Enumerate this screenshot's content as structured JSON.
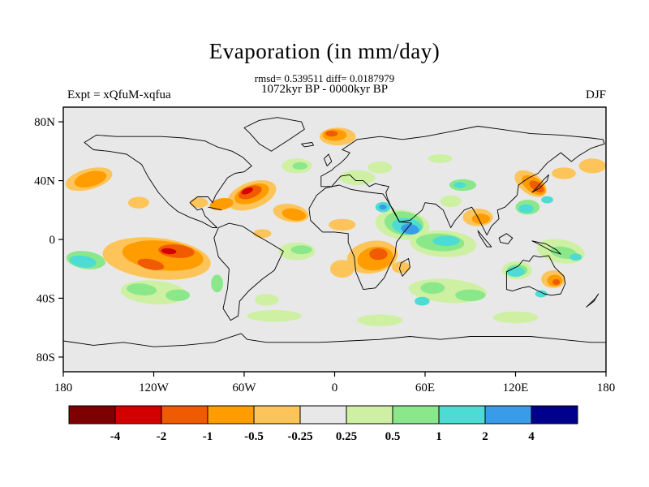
{
  "figure": {
    "title": "Evaporation (in mm/day)",
    "stats_line": "rmsd= 0.539511 diff= 0.0187979",
    "comparison_line": "1072kyr BP - 0000kyr BP",
    "experiment_label": "Expt = xQfuM-xqfua",
    "season_label": "DJF"
  },
  "chart_data": {
    "type": "heatmap",
    "title": "Evaporation (in mm/day)",
    "subtitle": "1072kyr BP - 0000kyr BP",
    "stats": {
      "rmsd": 0.539511,
      "diff": 0.0187979
    },
    "experiment": "xQfuM-xqfua",
    "season": "DJF",
    "units": "mm/day",
    "projection": "equirectangular",
    "lon_range": [
      -180,
      180
    ],
    "lat_range": [
      -90,
      90
    ],
    "x_ticks": [
      {
        "lon": -180,
        "label": "180"
      },
      {
        "lon": -120,
        "label": "120W"
      },
      {
        "lon": -60,
        "label": "60W"
      },
      {
        "lon": 0,
        "label": "0"
      },
      {
        "lon": 60,
        "label": "60E"
      },
      {
        "lon": 120,
        "label": "120E"
      },
      {
        "lon": 180,
        "label": "180"
      }
    ],
    "y_ticks": [
      {
        "lat": 80,
        "label": "80N"
      },
      {
        "lat": 40,
        "label": "40N"
      },
      {
        "lat": 0,
        "label": "0"
      },
      {
        "lat": -40,
        "label": "40S"
      },
      {
        "lat": -80,
        "label": "80S"
      }
    ],
    "colorbar": {
      "boundary_labels": [
        "-4",
        "-2",
        "-1",
        "-0.5",
        "-0.25",
        "0.25",
        "0.5",
        "1",
        "2",
        "4"
      ],
      "segment_colors": [
        "#7f0000",
        "#d40000",
        "#f05a00",
        "#ff9c00",
        "#fdc559",
        "#e8e8e8",
        "#cdf0a2",
        "#8ae88a",
        "#4ddcd4",
        "#3a9ce8",
        "#00008c"
      ]
    },
    "background_level": "-0.25..0.25",
    "level_colors": {
      "lt-4": "#7f0000",
      "-4..-2": "#d40000",
      "-2..-1": "#f05a00",
      "-1..-0.5": "#ff9c00",
      "-0.5..-0.25": "#fdc559",
      "-0.25..0.25": "#e8e8e8",
      "0.25..0.5": "#cdf0a2",
      "0.5..1": "#8ae88a",
      "1..2": "#4ddcd4",
      "2..4": "#3a9ce8",
      "gt4": "#00008c"
    },
    "anomaly_regions": [
      {
        "lon": -163,
        "lat": 41,
        "rlon": 16,
        "rlat": 7,
        "rot": -15,
        "level": "-0.5..-0.25"
      },
      {
        "lon": -130,
        "lat": 25,
        "rlon": 7,
        "rlat": 4,
        "rot": 0,
        "level": "-0.5..-0.25"
      },
      {
        "lon": -118,
        "lat": -13,
        "rlon": 36,
        "rlat": 14,
        "rot": 6,
        "level": "-0.5..-0.25"
      },
      {
        "lon": -55,
        "lat": 30,
        "rlon": 17,
        "rlat": 9,
        "rot": -20,
        "level": "-0.5..-0.25"
      },
      {
        "lon": -90,
        "lat": 25,
        "rlon": 6,
        "rlat": 3.5,
        "rot": 0,
        "level": "-0.5..-0.25"
      },
      {
        "lon": -29,
        "lat": 18,
        "rlon": 12,
        "rlat": 6,
        "rot": 10,
        "level": "-0.5..-0.25"
      },
      {
        "lon": 2,
        "lat": 70,
        "rlon": 12,
        "rlat": 6,
        "rot": 0,
        "level": "-0.5..-0.25"
      },
      {
        "lon": 25,
        "lat": -12,
        "rlon": 17,
        "rlat": 11,
        "rot": -10,
        "level": "-0.5..-0.25"
      },
      {
        "lon": 5,
        "lat": 10,
        "rlon": 9,
        "rlat": 4,
        "rot": 0,
        "level": "-0.5..-0.25"
      },
      {
        "lon": 95,
        "lat": 15,
        "rlon": 10,
        "rlat": 6,
        "rot": 0,
        "level": "-0.5..-0.25"
      },
      {
        "lon": 130,
        "lat": 38,
        "rlon": 12,
        "rlat": 7,
        "rot": 35,
        "level": "-0.5..-0.25"
      },
      {
        "lon": 152,
        "lat": 45,
        "rlon": 8,
        "rlat": 4,
        "rot": 0,
        "level": "-0.5..-0.25"
      },
      {
        "lon": 171,
        "lat": 50,
        "rlon": 9,
        "rlat": 5,
        "rot": 0,
        "level": "-0.5..-0.25"
      },
      {
        "lon": 145,
        "lat": -27,
        "rlon": 8,
        "rlat": 6,
        "rot": 0,
        "level": "-0.5..-0.25"
      },
      {
        "lon": -48,
        "lat": 4,
        "rlon": 6,
        "rlat": 3,
        "rot": 0,
        "level": "-0.5..-0.25"
      },
      {
        "lon": 5,
        "lat": -20,
        "rlon": 8,
        "rlat": 6,
        "rot": 0,
        "level": "-0.5..-0.25"
      },
      {
        "lon": 44,
        "lat": -19,
        "rlon": 6,
        "rlat": 4,
        "rot": 0,
        "level": "-0.5..-0.25"
      },
      {
        "lon": -120,
        "lat": -36,
        "rlon": 22,
        "rlat": 8,
        "rot": 4,
        "level": "0.25..0.5"
      },
      {
        "lon": -25,
        "lat": -8,
        "rlon": 12,
        "rlat": 6,
        "rot": 0,
        "level": "0.25..0.5"
      },
      {
        "lon": -25,
        "lat": 50,
        "rlon": 10,
        "rlat": 5,
        "rot": 0,
        "level": "0.25..0.5"
      },
      {
        "lon": 15,
        "lat": 42,
        "rlon": 12,
        "rlat": 5,
        "rot": 0,
        "level": "0.25..0.5"
      },
      {
        "lon": 30,
        "lat": 49,
        "rlon": 8,
        "rlat": 4,
        "rot": 0,
        "level": "0.25..0.5"
      },
      {
        "lon": 75,
        "lat": -35,
        "rlon": 26,
        "rlat": 8,
        "rot": 4,
        "level": "0.25..0.5"
      },
      {
        "lon": 77,
        "lat": 26,
        "rlon": 7,
        "rlat": 4,
        "rot": 0,
        "level": "0.25..0.5"
      },
      {
        "lon": 150,
        "lat": -8,
        "rlon": 16,
        "rlat": 8,
        "rot": 10,
        "level": "0.25..0.5"
      },
      {
        "lon": -40,
        "lat": -52,
        "rlon": 18,
        "rlat": 4,
        "rot": 0,
        "level": "0.25..0.5"
      },
      {
        "lon": 30,
        "lat": -55,
        "rlon": 15,
        "rlat": 4,
        "rot": 0,
        "level": "0.25..0.5"
      },
      {
        "lon": 120,
        "lat": -53,
        "rlon": 15,
        "rlat": 4,
        "rot": 0,
        "level": "0.25..0.5"
      },
      {
        "lon": -45,
        "lat": -41,
        "rlon": 8,
        "rlat": 4,
        "rot": 0,
        "level": "0.25..0.5"
      },
      {
        "lon": 70,
        "lat": 55,
        "rlon": 8,
        "rlat": 3,
        "rot": 0,
        "level": "0.25..0.5"
      },
      {
        "lon": 45,
        "lat": 10,
        "rlon": 18,
        "rlat": 10,
        "rot": 8,
        "level": "0.25..0.5"
      },
      {
        "lon": 72,
        "lat": -3,
        "rlon": 22,
        "rlat": 9,
        "rot": 3,
        "level": "0.25..0.5"
      },
      {
        "lon": 121,
        "lat": -21,
        "rlon": 10,
        "rlat": 6,
        "rot": 0,
        "level": "0.25..0.5"
      },
      {
        "lon": -162,
        "lat": 41,
        "rlon": 11,
        "rlat": 5,
        "rot": -15,
        "level": "-1..-0.5"
      },
      {
        "lon": -114,
        "lat": -11,
        "rlon": 27,
        "rlat": 10,
        "rot": 6,
        "level": "-1..-0.5"
      },
      {
        "lon": -55,
        "lat": 31,
        "rlon": 12,
        "rlat": 6,
        "rot": -20,
        "level": "-1..-0.5"
      },
      {
        "lon": -75,
        "lat": 24,
        "rlon": 8,
        "rlat": 4,
        "rot": -10,
        "level": "-1..-0.5"
      },
      {
        "lon": -27,
        "lat": 17,
        "rlon": 8,
        "rlat": 4,
        "rot": 10,
        "level": "-1..-0.5"
      },
      {
        "lon": 0,
        "lat": 71,
        "rlon": 8,
        "rlat": 4,
        "rot": 0,
        "level": "-1..-0.5"
      },
      {
        "lon": 27,
        "lat": -13,
        "rlon": 12,
        "rlat": 8,
        "rot": -10,
        "level": "-1..-0.5"
      },
      {
        "lon": 97,
        "lat": 14,
        "rlon": 6,
        "rlat": 3.5,
        "rot": 0,
        "level": "-1..-0.5"
      },
      {
        "lon": 132,
        "lat": 37,
        "rlon": 9,
        "rlat": 5,
        "rot": 35,
        "level": "-1..-0.5"
      },
      {
        "lon": 146,
        "lat": -28,
        "rlon": 5,
        "rlat": 4,
        "rot": 0,
        "level": "-1..-0.5"
      },
      {
        "lon": -128,
        "lat": -34,
        "rlon": 10,
        "rlat": 4,
        "rot": 5,
        "level": "0.5..1"
      },
      {
        "lon": -104,
        "lat": -38,
        "rlon": 8,
        "rlat": 4,
        "rot": 0,
        "level": "0.5..1"
      },
      {
        "lon": -78,
        "lat": -30,
        "rlon": 4,
        "rlat": 6,
        "rot": 0,
        "level": "0.5..1"
      },
      {
        "lon": -165,
        "lat": -14,
        "rlon": 13,
        "rlat": 6,
        "rot": 8,
        "level": "0.5..1"
      },
      {
        "lon": -22,
        "lat": -7,
        "rlon": 7,
        "rlat": 3,
        "rot": 0,
        "level": "0.5..1"
      },
      {
        "lon": -23,
        "lat": 50,
        "rlon": 5,
        "rlat": 2.5,
        "rot": 0,
        "level": "0.5..1"
      },
      {
        "lon": 46,
        "lat": 11,
        "rlon": 13,
        "rlat": 8,
        "rot": 8,
        "level": "0.5..1"
      },
      {
        "lon": 70,
        "lat": -2,
        "rlon": 16,
        "rlat": 6,
        "rot": 3,
        "level": "0.5..1"
      },
      {
        "lon": 65,
        "lat": -33,
        "rlon": 8,
        "rlat": 4,
        "rot": 0,
        "level": "0.5..1"
      },
      {
        "lon": 90,
        "lat": -38,
        "rlon": 10,
        "rlat": 4,
        "rot": 0,
        "level": "0.5..1"
      },
      {
        "lon": 85,
        "lat": 37,
        "rlon": 9,
        "rlat": 4,
        "rot": 0,
        "level": "0.5..1"
      },
      {
        "lon": 128,
        "lat": 22,
        "rlon": 8,
        "rlat": 5,
        "rot": 0,
        "level": "0.5..1"
      },
      {
        "lon": 152,
        "lat": -9,
        "rlon": 9,
        "rlat": 4,
        "rot": 10,
        "level": "0.5..1"
      },
      {
        "lon": 121,
        "lat": -21,
        "rlon": 7,
        "rlat": 4,
        "rot": 0,
        "level": "0.5..1"
      },
      {
        "lon": -105,
        "lat": -8,
        "rlon": 12,
        "rlat": 4.5,
        "rot": 5,
        "level": "-2..-1"
      },
      {
        "lon": -122,
        "lat": -17,
        "rlon": 9,
        "rlat": 3.5,
        "rot": 12,
        "level": "-2..-1"
      },
      {
        "lon": -56,
        "lat": 32,
        "rlon": 8,
        "rlat": 4,
        "rot": -20,
        "level": "-2..-1"
      },
      {
        "lon": -2,
        "lat": 72,
        "rlon": 4,
        "rlat": 2,
        "rot": 0,
        "level": "-2..-1"
      },
      {
        "lon": 29,
        "lat": -10,
        "rlon": 6,
        "rlat": 4,
        "rot": 0,
        "level": "-2..-1"
      },
      {
        "lon": 134,
        "lat": 36,
        "rlon": 5.5,
        "rlat": 3,
        "rot": 35,
        "level": "-2..-1"
      },
      {
        "lon": 147,
        "lat": -29,
        "rlon": 2.5,
        "rlat": 2,
        "rot": 0,
        "level": "-2..-1"
      },
      {
        "lon": -167,
        "lat": -15,
        "rlon": 9,
        "rlat": 4,
        "rot": 8,
        "level": "1..2"
      },
      {
        "lon": 48,
        "lat": 9,
        "rlon": 10,
        "rlat": 5.5,
        "rot": 8,
        "level": "1..2"
      },
      {
        "lon": 74,
        "lat": -1,
        "rlon": 9,
        "rlat": 3.5,
        "rot": 0,
        "level": "1..2"
      },
      {
        "lon": 83,
        "lat": 37,
        "rlon": 4,
        "rlat": 2,
        "rot": 0,
        "level": "1..2"
      },
      {
        "lon": 127,
        "lat": 21,
        "rlon": 5,
        "rlat": 3,
        "rot": 0,
        "level": "1..2"
      },
      {
        "lon": 141,
        "lat": 27,
        "rlon": 4,
        "rlat": 2.5,
        "rot": 0,
        "level": "1..2"
      },
      {
        "lon": 120,
        "lat": -22,
        "rlon": 6,
        "rlat": 3.5,
        "rot": 0,
        "level": "1..2"
      },
      {
        "lon": 137,
        "lat": -37,
        "rlon": 4,
        "rlat": 2.5,
        "rot": 0,
        "level": "1..2"
      },
      {
        "lon": 58,
        "lat": -42,
        "rlon": 5,
        "rlat": 3,
        "rot": 0,
        "level": "1..2"
      },
      {
        "lon": 32,
        "lat": 22,
        "rlon": 5,
        "rlat": 3.5,
        "rot": 0,
        "level": "1..2"
      },
      {
        "lon": 160,
        "lat": -12,
        "rlon": 4,
        "rlat": 2.5,
        "rot": 0,
        "level": "1..2"
      },
      {
        "lon": -58,
        "lat": 33,
        "rlon": 4,
        "rlat": 2,
        "rot": -20,
        "level": "-4..-2"
      },
      {
        "lon": -110,
        "lat": -8,
        "rlon": 5,
        "rlat": 2,
        "rot": 5,
        "level": "-4..-2"
      },
      {
        "lon": 50,
        "lat": 7,
        "rlon": 6,
        "rlat": 3.5,
        "rot": 8,
        "level": "2..4"
      },
      {
        "lon": 32,
        "lat": 22,
        "rlon": 2.5,
        "rlat": 1.8,
        "rot": 0,
        "level": "2..4"
      }
    ]
  }
}
